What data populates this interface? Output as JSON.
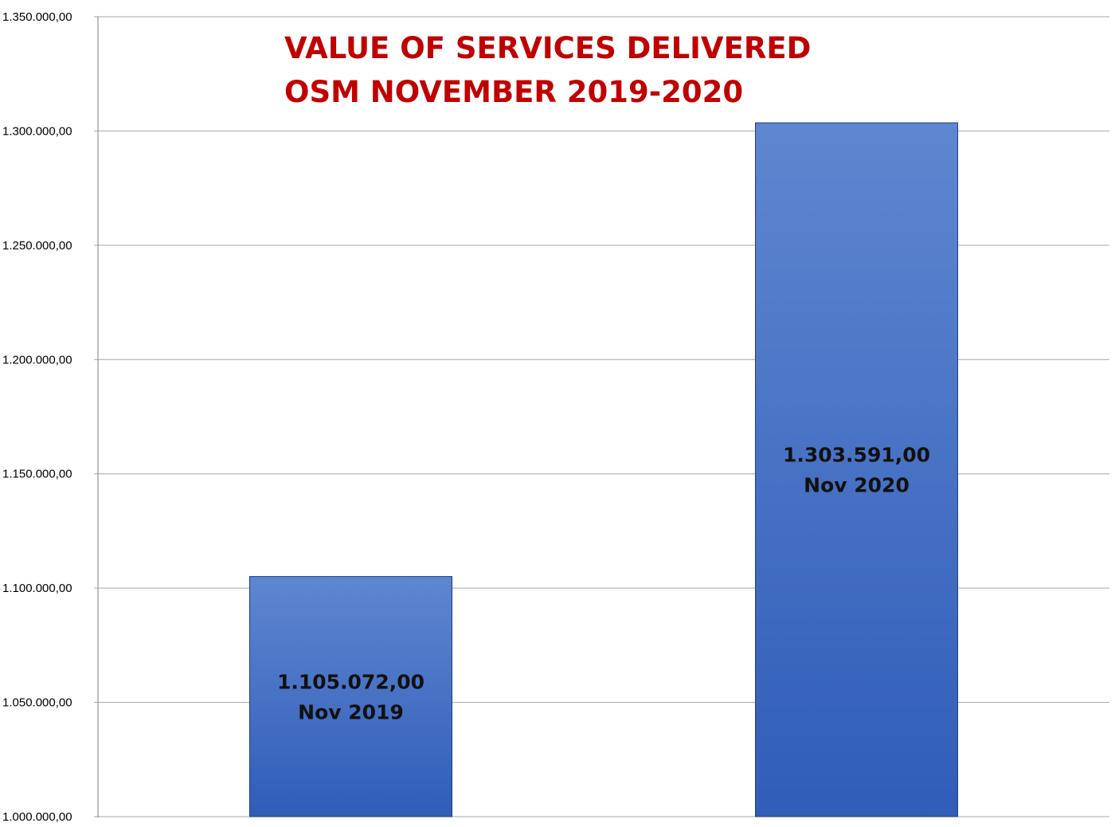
{
  "chart_data": {
    "type": "bar",
    "title_lines": [
      "VALUE OF SERVICES DELIVERED",
      "OSM NOVEMBER 2019-2020"
    ],
    "categories": [
      "Nov 2019",
      "Nov 2020"
    ],
    "values": [
      1105072,
      1303591
    ],
    "value_labels": [
      "1.105.072,00",
      "1.303.591,00"
    ],
    "ylim": [
      1000000,
      1350000
    ],
    "y_ticks": [
      {
        "value": 1000000,
        "label": "1.000.000,00"
      },
      {
        "value": 1050000,
        "label": "1.050.000,00"
      },
      {
        "value": 1100000,
        "label": "1.100.000,00"
      },
      {
        "value": 1150000,
        "label": "1.150.000,00"
      },
      {
        "value": 1200000,
        "label": "1.200.000,00"
      },
      {
        "value": 1250000,
        "label": "1.250.000,00"
      },
      {
        "value": 1300000,
        "label": "1.300.000,00"
      },
      {
        "value": 1350000,
        "label": "1.350.000,00"
      }
    ],
    "grid": true,
    "legend": "none",
    "colors": {
      "title": "#c00000",
      "bar_top": "#5f86d0",
      "bar_bottom": "#2f5db8",
      "bar_border": "#1f3d7a",
      "gridline": "#a6a6a6",
      "axis": "#7f7f7f"
    }
  }
}
